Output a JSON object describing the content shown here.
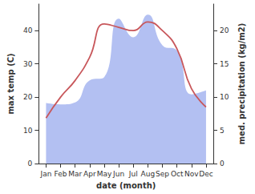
{
  "chart_data": {
    "type": "line",
    "x_label": "date (month)",
    "y_label": "max temp (C)",
    "y2_label": "med. precipitation (kg/m2)",
    "categories": [
      "Jan",
      "Feb",
      "Mar",
      "Apr",
      "May",
      "Jun",
      "Jul",
      "Aug",
      "Sep",
      "Oct",
      "Nov",
      "Dec"
    ],
    "series": [
      {
        "name": "med. precipitation",
        "type": "area",
        "axis": "y2",
        "color": "#b3c0f2",
        "values": [
          9.1,
          8.9,
          9.2,
          12.5,
          13,
          21.8,
          19,
          22.4,
          17.8,
          17,
          10.4,
          11
        ]
      },
      {
        "name": "max temp",
        "type": "line",
        "color": "#c8575b",
        "values": [
          13.7,
          20,
          25,
          32,
          42,
          41,
          40,
          42.6,
          40,
          34.5,
          22.5,
          17
        ]
      }
    ],
    "ylim": [
      0,
      48
    ],
    "yticks": [
      0,
      10,
      20,
      30,
      40
    ],
    "y2lim": [
      0,
      24
    ],
    "y2ticks": [
      0,
      5,
      10,
      15,
      20
    ],
    "grid": false
  }
}
